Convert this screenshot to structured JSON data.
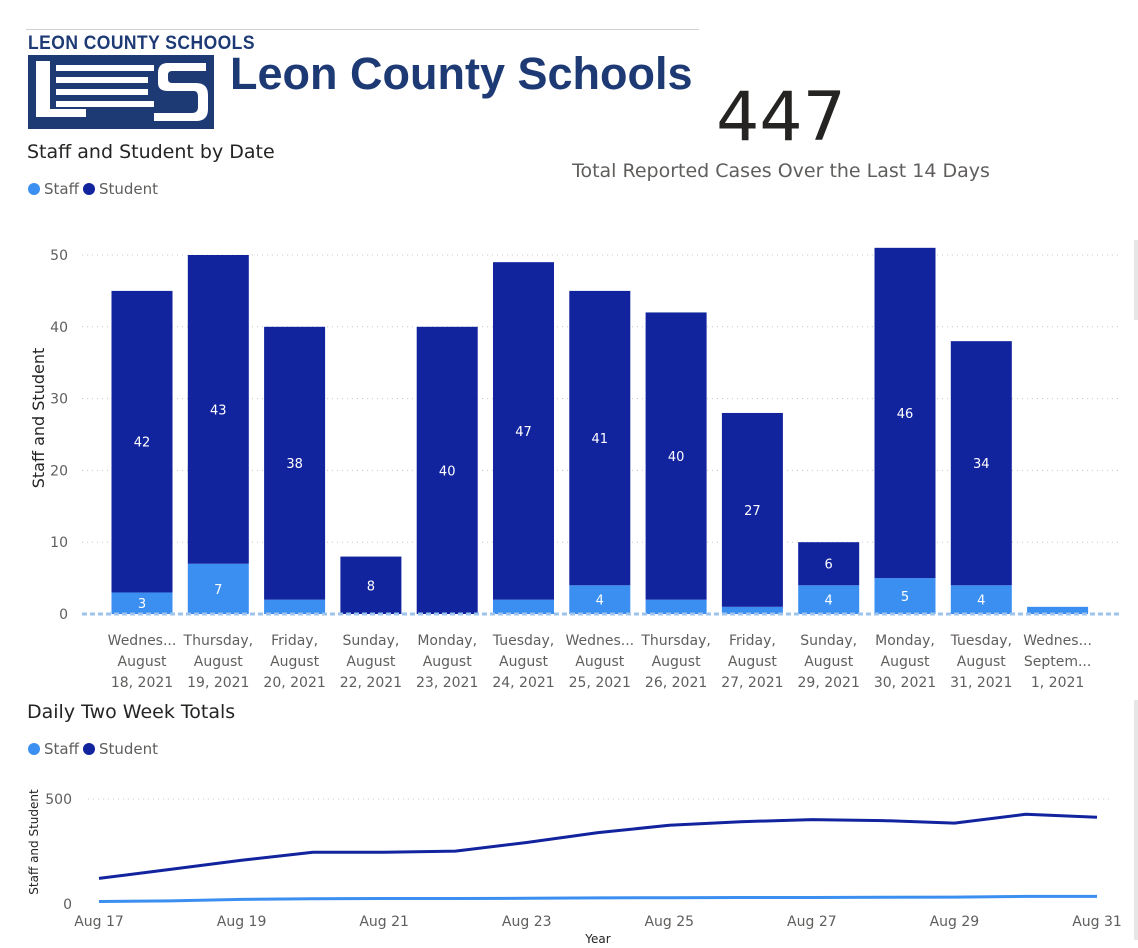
{
  "header": {
    "logo_small_text": "LEON COUNTY SCHOOLS",
    "logo_big_text": "Leon County Schools"
  },
  "kpi": {
    "value": "447",
    "label": "Total Reported Cases Over the Last 14 Days"
  },
  "colors": {
    "staff": "#3b8ff0",
    "student": "#12239e",
    "logo": "#1e3a75"
  },
  "chart_data": [
    {
      "type": "bar",
      "stacked": true,
      "title": "Staff and Student by Date",
      "xlabel": "",
      "ylabel": "Staff and Student",
      "ylim": [
        0,
        50
      ],
      "yticks": [
        0,
        10,
        20,
        30,
        40,
        50
      ],
      "grid": true,
      "legend": "top-left",
      "categories": [
        [
          "Wednes...",
          "August",
          "18, 2021"
        ],
        [
          "Thursday,",
          "August",
          "19, 2021"
        ],
        [
          "Friday,",
          "August",
          "20, 2021"
        ],
        [
          "Sunday,",
          "August",
          "22, 2021"
        ],
        [
          "Monday,",
          "August",
          "23, 2021"
        ],
        [
          "Tuesday,",
          "August",
          "24, 2021"
        ],
        [
          "Wednes...",
          "August",
          "25, 2021"
        ],
        [
          "Thursday,",
          "August",
          "26, 2021"
        ],
        [
          "Friday,",
          "August",
          "27, 2021"
        ],
        [
          "Sunday,",
          "August",
          "29, 2021"
        ],
        [
          "Monday,",
          "August",
          "30, 2021"
        ],
        [
          "Tuesday,",
          "August",
          "31, 2021"
        ],
        [
          "Wednes...",
          "Septem...",
          "1, 2021"
        ]
      ],
      "series": [
        {
          "name": "Staff",
          "values": [
            3,
            7,
            2,
            0,
            0,
            2,
            4,
            2,
            1,
            4,
            5,
            4,
            1
          ],
          "labels": [
            "3",
            "7",
            "",
            "",
            "",
            "",
            "4",
            "",
            "",
            "4",
            "5",
            "4",
            ""
          ]
        },
        {
          "name": "Student",
          "values": [
            42,
            43,
            38,
            8,
            40,
            47,
            41,
            40,
            27,
            6,
            46,
            34,
            0
          ],
          "labels": [
            "42",
            "43",
            "38",
            "8",
            "40",
            "47",
            "41",
            "40",
            "27",
            "6",
            "46",
            "34",
            ""
          ]
        }
      ]
    },
    {
      "type": "line",
      "title": "Daily Two Week Totals",
      "xlabel": "Year",
      "ylabel": "Staff and Student",
      "ylim": [
        0,
        500
      ],
      "yticks": [
        0,
        500
      ],
      "grid": true,
      "legend": "top-left",
      "x": [
        "Aug 17",
        "Aug 18",
        "Aug 19",
        "Aug 20",
        "Aug 21",
        "Aug 22",
        "Aug 23",
        "Aug 24",
        "Aug 25",
        "Aug 26",
        "Aug 27",
        "Aug 28",
        "Aug 29",
        "Aug 30",
        "Aug 31"
      ],
      "xtick_labels": [
        "Aug 17",
        "Aug 19",
        "Aug 21",
        "Aug 23",
        "Aug 25",
        "Aug 27",
        "Aug 29",
        "Aug 31"
      ],
      "series": [
        {
          "name": "Staff",
          "values": [
            12,
            15,
            22,
            25,
            26,
            26,
            27,
            29,
            30,
            31,
            31,
            32,
            33,
            36,
            36
          ]
        },
        {
          "name": "Student",
          "values": [
            122,
            165,
            208,
            246,
            246,
            252,
            293,
            340,
            375,
            392,
            402,
            397,
            385,
            427,
            413
          ]
        }
      ]
    }
  ]
}
